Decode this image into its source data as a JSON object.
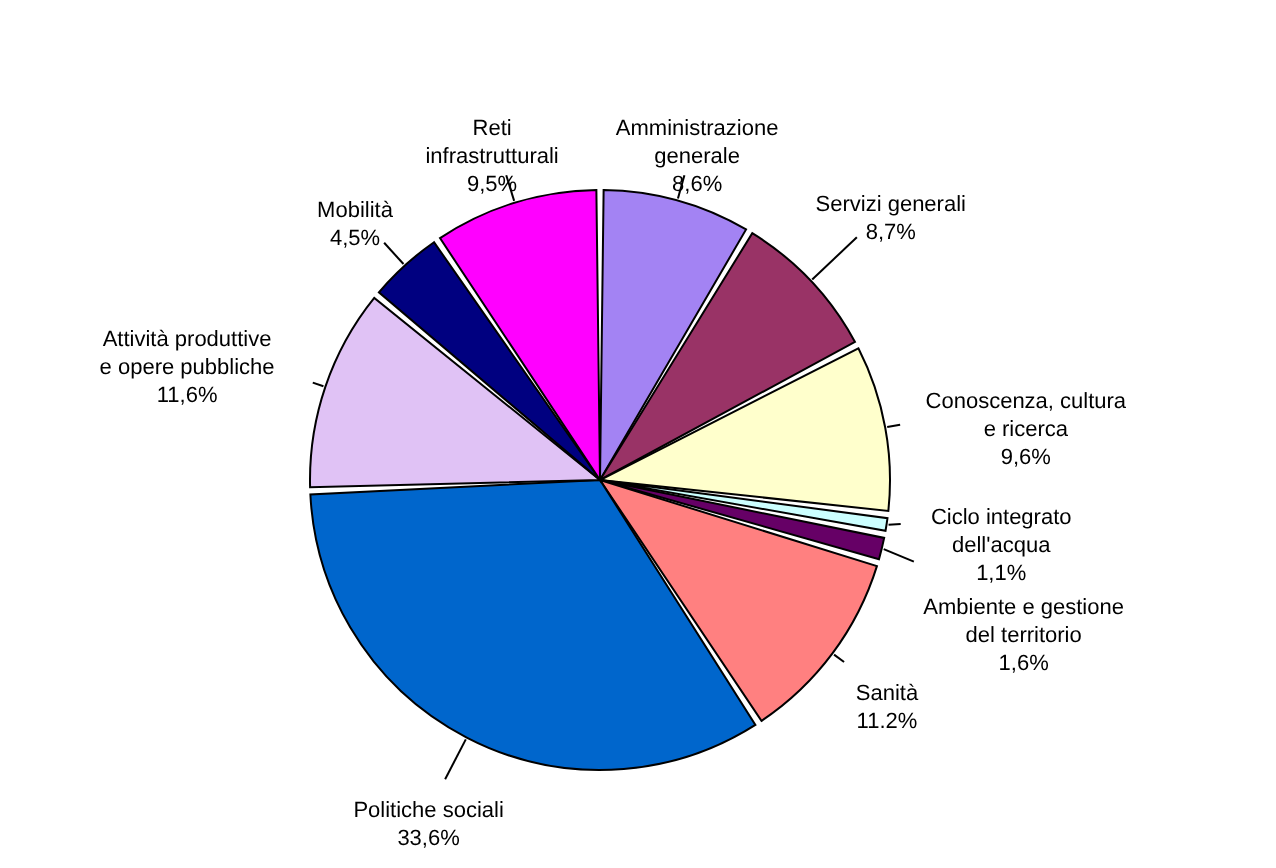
{
  "chart_data": {
    "type": "pie",
    "categories": [
      "Amministrazione generale",
      "Servizi generali",
      "Conoscenza, cultura e ricerca",
      "Ciclo integrato dell'acqua",
      "Ambiente e gestione del territorio",
      "Sanità",
      "Politiche sociali",
      "Attività produttive e opere pubbliche",
      "Mobilità",
      "Reti infrastrutturali"
    ],
    "values": [
      8.6,
      8.7,
      9.6,
      1.1,
      1.6,
      11.2,
      33.6,
      11.6,
      4.5,
      9.5
    ],
    "value_labels": [
      "8,6%",
      "8,7%",
      "9,6%",
      "1,1%",
      "1,6%",
      "11.2%",
      "33,6%",
      "11,6%",
      "4,5%",
      "9,5%"
    ],
    "colors": [
      "#a383f3",
      "#993366",
      "#ffffcc",
      "#ccffff",
      "#660066",
      "#ff8080",
      "#0066cc",
      "#e0c2f5",
      "#000080",
      "#ff00ff"
    ]
  }
}
